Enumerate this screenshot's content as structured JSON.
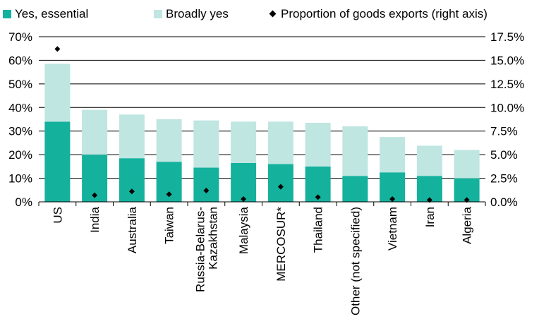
{
  "chart_data": {
    "type": "bar",
    "stacked": true,
    "categories": [
      "US",
      "India",
      "Australia",
      "Taiwan",
      "Russia-Belarus-Kazakhstan",
      "Malaysia",
      "MERCOSUR*",
      "Thailand",
      "Other (not specified)",
      "Vietnam",
      "Iran",
      "Algeria"
    ],
    "category_lines": [
      [
        "US"
      ],
      [
        "India"
      ],
      [
        "Australia"
      ],
      [
        "Taiwan"
      ],
      [
        "Russia-Belarus-",
        "Kazakhstan"
      ],
      [
        "Malaysia"
      ],
      [
        "MERCOSUR*"
      ],
      [
        "Thailand"
      ],
      [
        "Other (not specified)"
      ],
      [
        "Vietnam"
      ],
      [
        "Iran"
      ],
      [
        "Algeria"
      ]
    ],
    "series": [
      {
        "name": "Yes, essential",
        "color": "#14b19d",
        "values": [
          34,
          20,
          18.5,
          17,
          14.5,
          16.5,
          16,
          15,
          11,
          12.5,
          11,
          10
        ]
      },
      {
        "name": "Broadly yes",
        "color": "#bfe6e1",
        "values": [
          24.5,
          19,
          18.5,
          18,
          20,
          17.5,
          18,
          18.5,
          21,
          15,
          12.8,
          12
        ]
      }
    ],
    "secondary_series": {
      "name": "Proportion of goods exports (right axis)",
      "type": "scatter",
      "marker": "diamond",
      "color": "#000000",
      "values": [
        16.2,
        0.7,
        1.1,
        0.8,
        1.2,
        0.3,
        1.6,
        0.5,
        null,
        0.3,
        0.2,
        0.2
      ]
    },
    "y_left": {
      "ylim": [
        0,
        70
      ],
      "ticks": [
        0,
        10,
        20,
        30,
        40,
        50,
        60,
        70
      ],
      "tick_labels": [
        "0%",
        "10%",
        "20%",
        "30%",
        "40%",
        "50%",
        "60%",
        "70%"
      ]
    },
    "y_right": {
      "ylim": [
        0,
        17.5
      ],
      "ticks": [
        0,
        2.5,
        5,
        7.5,
        10,
        12.5,
        15,
        17.5
      ],
      "tick_labels": [
        "0.0%",
        "2.5%",
        "5.0%",
        "7.5%",
        "10.0%",
        "12.5%",
        "15.0%",
        "17.5%"
      ]
    },
    "grid": "horizontal",
    "legend": "top"
  }
}
